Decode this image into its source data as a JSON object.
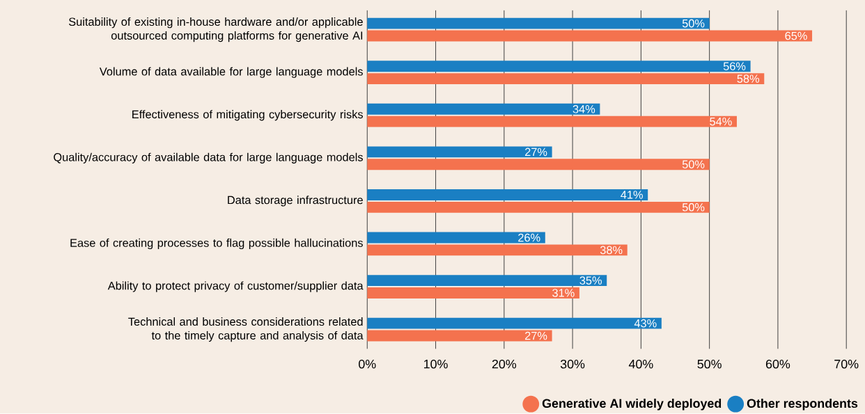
{
  "chart_data": {
    "type": "bar",
    "orientation": "horizontal",
    "categories": [
      "Suitability of existing in-house hardware and/or applicable outsourced computing platforms for generative AI",
      "Volume of data available for large language models",
      "Effectiveness of mitigating cybersecurity risks",
      "Quality/accuracy of available data for large language models",
      "Data storage infrastructure",
      "Ease of creating processes to flag possible hallucinations",
      "Ability to protect privacy of customer/supplier data",
      "Technical and business considerations related to the timely capture and analysis of data"
    ],
    "series": [
      {
        "name": "Generative AI widely deployed",
        "color": "#f4724e",
        "values": [
          65,
          58,
          54,
          50,
          50,
          38,
          31,
          27
        ],
        "value_labels": [
          "65%",
          "58%",
          "54%",
          "50%",
          "50%",
          "38%",
          "31%",
          "27%"
        ]
      },
      {
        "name": "Other respondents",
        "color": "#1a7fc3",
        "values": [
          50,
          56,
          34,
          27,
          41,
          26,
          35,
          43
        ],
        "value_labels": [
          "50%",
          "56%",
          "34%",
          "27%",
          "41%",
          "26%",
          "35%",
          "43%"
        ]
      }
    ],
    "xlim": [
      0,
      70
    ],
    "xticks": [
      {
        "value": 0,
        "label": "0%"
      },
      {
        "value": 10,
        "label": "10%"
      },
      {
        "value": 20,
        "label": "20%"
      },
      {
        "value": 30,
        "label": "30%"
      },
      {
        "value": 40,
        "label": "40%"
      },
      {
        "value": 50,
        "label": "50%"
      },
      {
        "value": 60,
        "label": "60%"
      },
      {
        "value": 70,
        "label": "70%"
      }
    ],
    "grid": "x",
    "legend": "bottom right"
  }
}
